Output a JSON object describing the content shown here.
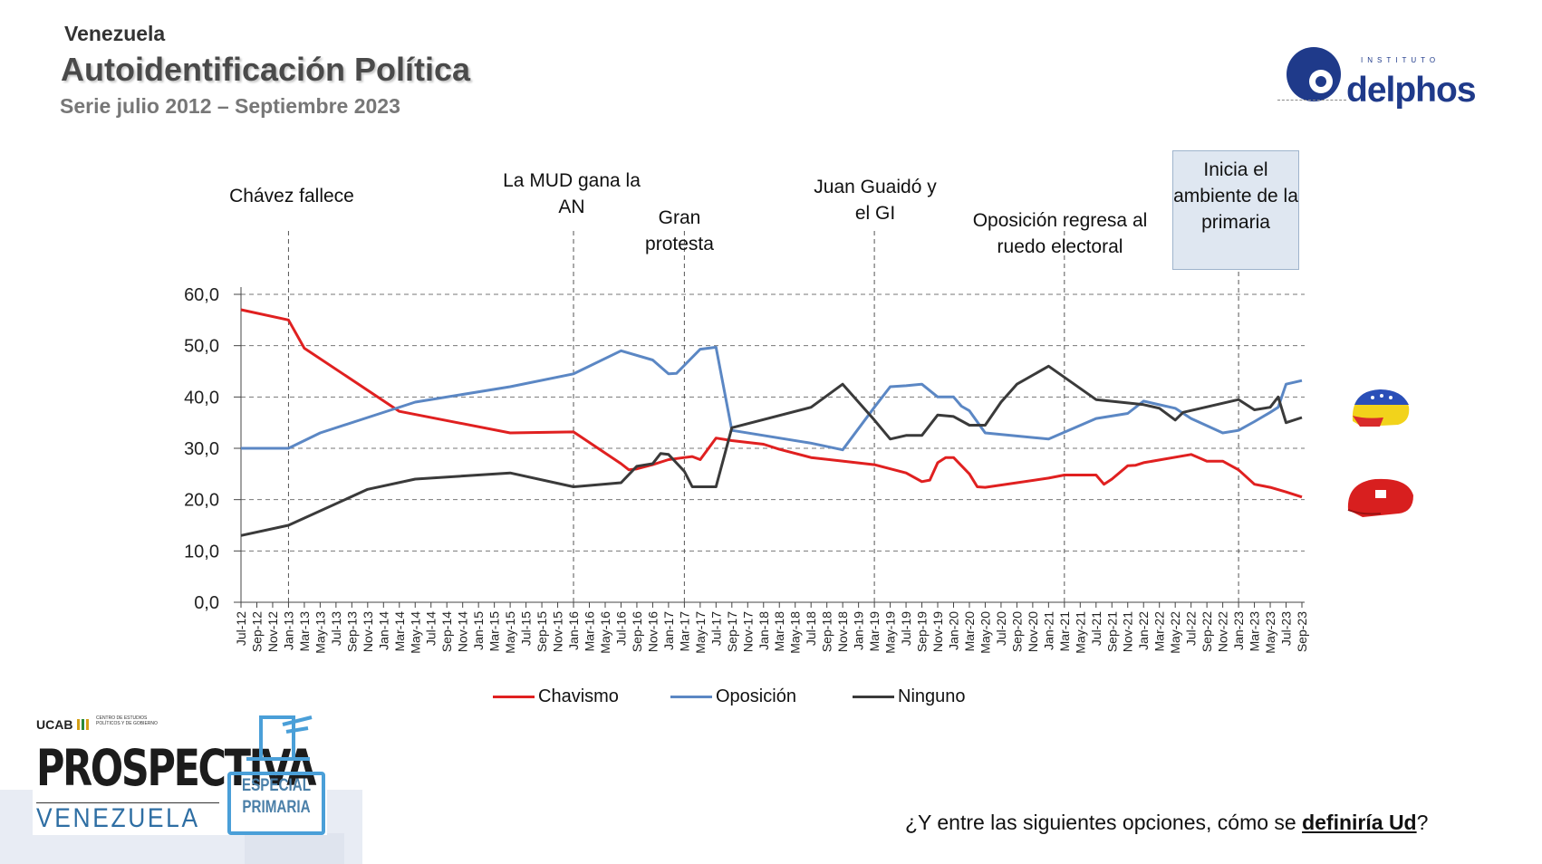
{
  "header": {
    "country": "Venezuela",
    "title": "Autoidentificación Política",
    "subtitle": "Serie julio 2012 – Septiembre 2023"
  },
  "logo": {
    "institute": "INSTITUTO",
    "name": "delphos"
  },
  "annotations": [
    {
      "text": "Chávez fallece",
      "at": "Jan-13"
    },
    {
      "text": "La MUD gana la AN",
      "at": "Jan-16"
    },
    {
      "text": "Gran protesta",
      "at": "Mar-17"
    },
    {
      "text": "Juan Guaidó y el GI",
      "at": "Mar-19"
    },
    {
      "text": "Oposición regresa al ruedo electoral",
      "at": "Mar-21"
    },
    {
      "text": "Inicia el ambiente de la primaria",
      "at": "Jan-23"
    }
  ],
  "legend": {
    "chavismo": "Chavismo",
    "oposicion": "Oposición",
    "ninguno": "Ninguno"
  },
  "question": {
    "before": "¿Y entre las siguientes opciones, cómo se ",
    "bold": "definiría Ud",
    "after": "?"
  },
  "footer": {
    "ucab": "UCAB",
    "ucab_center": "CENTRO DE ESTUDIOS POLÍTICOS Y DE GOBIERNO",
    "brand": "PROSPECTIVA",
    "brand_country": "VENEZUELA",
    "especial_1": "ESPECIAL",
    "especial_2": "PRIMARIA"
  },
  "chart_data": {
    "type": "line",
    "title": "Autoidentificación Política",
    "xlabel": "",
    "ylabel": "",
    "ylim": [
      0,
      60
    ],
    "yticks": [
      "0,0",
      "10,0",
      "20,0",
      "30,0",
      "40,0",
      "50,0",
      "60,0"
    ],
    "grid": true,
    "legend_position": "bottom",
    "x_labels": [
      "Jul-12",
      "Sep-12",
      "Nov-12",
      "Jan-13",
      "Mar-13",
      "May-13",
      "Jul-13",
      "Sep-13",
      "Nov-13",
      "Jan-14",
      "Mar-14",
      "May-14",
      "Jul-14",
      "Sep-14",
      "Nov-14",
      "Jan-15",
      "Mar-15",
      "May-15",
      "Jul-15",
      "Sep-15",
      "Nov-15",
      "Jan-16",
      "Mar-16",
      "May-16",
      "Jul-16",
      "Sep-16",
      "Nov-16",
      "Jan-17",
      "Mar-17",
      "May-17",
      "Jul-17",
      "Sep-17",
      "Nov-17",
      "Jan-18",
      "Mar-18",
      "May-18",
      "Jul-18",
      "Sep-18",
      "Nov-18",
      "Jan-19",
      "Mar-19",
      "May-19",
      "Jul-19",
      "Sep-19",
      "Nov-19",
      "Jan-20",
      "Mar-20",
      "May-20",
      "Jul-20",
      "Sep-20",
      "Nov-20",
      "Jan-21",
      "Mar-21",
      "May-21",
      "Jul-21",
      "Sep-21",
      "Nov-21",
      "Jan-22",
      "Mar-22",
      "May-22",
      "Jul-22",
      "Sep-22",
      "Nov-22",
      "Jan-23",
      "Mar-23",
      "May-23",
      "Jul-23",
      "Sep-23"
    ],
    "series": [
      {
        "name": "Chavismo",
        "color": "#e02020",
        "points": [
          [
            "Jul-12",
            57
          ],
          [
            "Jan-13",
            55
          ],
          [
            "Mar-13",
            49.5
          ],
          [
            "Mar-14",
            37.2
          ],
          [
            "May-15",
            33
          ],
          [
            "Jan-16",
            33.2
          ],
          [
            "Jul-16",
            27
          ],
          [
            "Aug-16",
            25.8
          ],
          [
            "Sep-16",
            26
          ],
          [
            "Nov-16",
            26.8
          ],
          [
            "Jan-17",
            27.8
          ],
          [
            "Mar-17",
            28.2
          ],
          [
            "Apr-17",
            28.4
          ],
          [
            "May-17",
            27.8
          ],
          [
            "Jul-17",
            32
          ],
          [
            "Sep-17",
            31.5
          ],
          [
            "Jan-18",
            30.8
          ],
          [
            "Mar-18",
            29.8
          ],
          [
            "Jul-18",
            28.2
          ],
          [
            "Mar-19",
            26.8
          ],
          [
            "Jul-19",
            25.2
          ],
          [
            "Sep-19",
            23.5
          ],
          [
            "Oct-19",
            23.8
          ],
          [
            "Nov-19",
            27.2
          ],
          [
            "Dec-19",
            28.2
          ],
          [
            "Jan-20",
            28.2
          ],
          [
            "Mar-20",
            25
          ],
          [
            "Apr-20",
            22.5
          ],
          [
            "May-20",
            22.4
          ],
          [
            "Jan-21",
            24.2
          ],
          [
            "Mar-21",
            24.8
          ],
          [
            "Jul-21",
            24.8
          ],
          [
            "Aug-21",
            23
          ],
          [
            "Sep-21",
            24
          ],
          [
            "Nov-21",
            26.6
          ],
          [
            "Dec-21",
            26.7
          ],
          [
            "Jan-22",
            27.2
          ],
          [
            "Jul-22",
            28.8
          ],
          [
            "Sep-22",
            27.5
          ],
          [
            "Nov-22",
            27.5
          ],
          [
            "Jan-23",
            25.8
          ],
          [
            "Mar-23",
            23
          ],
          [
            "May-23",
            22.4
          ],
          [
            "Jul-23",
            21.5
          ],
          [
            "Sep-23",
            20.5
          ]
        ]
      },
      {
        "name": "Oposición",
        "color": "#5b87c4",
        "points": [
          [
            "Jul-12",
            30
          ],
          [
            "Jan-13",
            30
          ],
          [
            "May-13",
            33
          ],
          [
            "Nov-13",
            36
          ],
          [
            "May-14",
            39
          ],
          [
            "May-15",
            42
          ],
          [
            "Jan-16",
            44.5
          ],
          [
            "Jul-16",
            49
          ],
          [
            "Nov-16",
            47.2
          ],
          [
            "Jan-17",
            44.5
          ],
          [
            "Feb-17",
            44.6
          ],
          [
            "May-17",
            49.3
          ],
          [
            "Jul-17",
            49.7
          ],
          [
            "Sep-17",
            33.5
          ],
          [
            "Jul-18",
            31
          ],
          [
            "Nov-18",
            29.7
          ],
          [
            "Mar-19",
            38
          ],
          [
            "May-19",
            42
          ],
          [
            "Jul-19",
            42.2
          ],
          [
            "Sep-19",
            42.5
          ],
          [
            "Nov-19",
            40
          ],
          [
            "Jan-20",
            40
          ],
          [
            "Feb-20",
            38.2
          ],
          [
            "Mar-20",
            37.3
          ],
          [
            "May-20",
            33
          ],
          [
            "Jan-21",
            31.8
          ],
          [
            "Jul-21",
            35.8
          ],
          [
            "Nov-21",
            36.8
          ],
          [
            "Jan-22",
            39.2
          ],
          [
            "May-22",
            37.8
          ],
          [
            "Jul-22",
            35.8
          ],
          [
            "Nov-22",
            33
          ],
          [
            "Jan-23",
            33.5
          ],
          [
            "Mar-23",
            35.2
          ],
          [
            "May-23",
            37
          ],
          [
            "Jun-23",
            38
          ],
          [
            "Jul-23",
            42.5
          ],
          [
            "Sep-23",
            43.2
          ]
        ]
      },
      {
        "name": "Ninguno",
        "color": "#3a3a3a",
        "points": [
          [
            "Jul-12",
            13
          ],
          [
            "Jan-13",
            15
          ],
          [
            "Nov-13",
            22
          ],
          [
            "May-14",
            24
          ],
          [
            "May-15",
            25.2
          ],
          [
            "Jan-16",
            22.5
          ],
          [
            "Jul-16",
            23.3
          ],
          [
            "Sep-16",
            26.5
          ],
          [
            "Nov-16",
            27
          ],
          [
            "Dec-16",
            29
          ],
          [
            "Jan-17",
            28.8
          ],
          [
            "Mar-17",
            25.5
          ],
          [
            "Apr-17",
            22.5
          ],
          [
            "Jul-17",
            22.5
          ],
          [
            "Sep-17",
            34
          ],
          [
            "Jul-18",
            38
          ],
          [
            "Nov-18",
            42.5
          ],
          [
            "Mar-19",
            35.5
          ],
          [
            "May-19",
            31.8
          ],
          [
            "Jul-19",
            32.5
          ],
          [
            "Sep-19",
            32.5
          ],
          [
            "Nov-19",
            36.5
          ],
          [
            "Jan-20",
            36.2
          ],
          [
            "Mar-20",
            34.5
          ],
          [
            "May-20",
            34.5
          ],
          [
            "Jul-20",
            39
          ],
          [
            "Sep-20",
            42.5
          ],
          [
            "Jan-21",
            46
          ],
          [
            "Jul-21",
            39.5
          ],
          [
            "Jan-22",
            38.5
          ],
          [
            "Mar-22",
            37.8
          ],
          [
            "May-22",
            35.5
          ],
          [
            "Jun-22",
            37
          ],
          [
            "Jan-23",
            39.5
          ],
          [
            "Mar-23",
            37.5
          ],
          [
            "May-23",
            38
          ],
          [
            "Jun-23",
            40
          ],
          [
            "Jul-23",
            35
          ],
          [
            "Sep-23",
            36
          ]
        ]
      }
    ]
  }
}
